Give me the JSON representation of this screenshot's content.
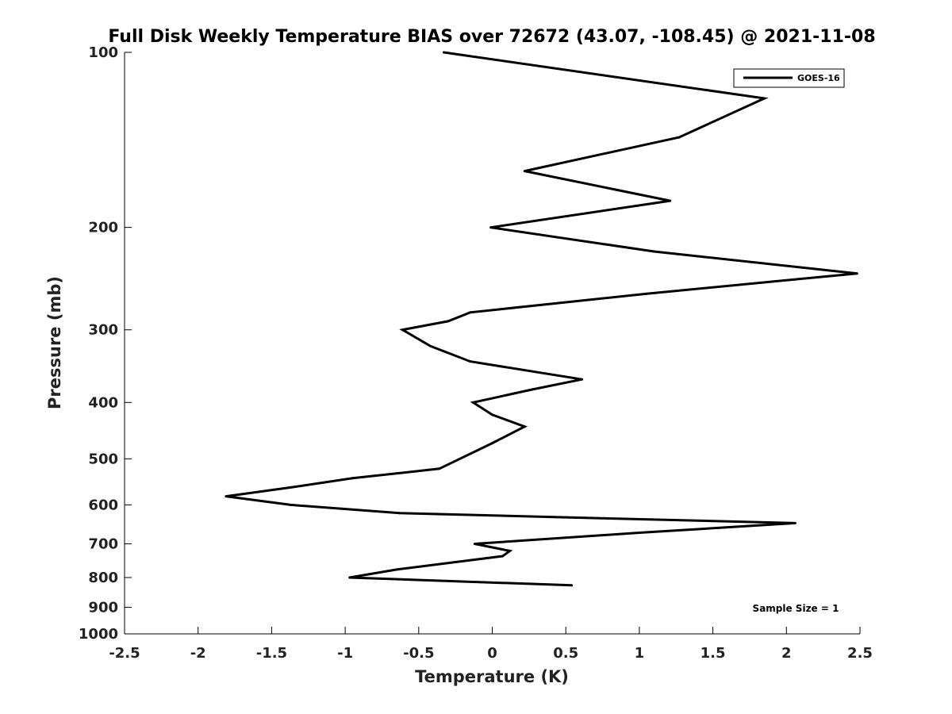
{
  "chart_data": {
    "type": "line",
    "title": "Full Disk Weekly Temperature BIAS over 72672 (43.07, -108.45) @ 2021-11-08",
    "xlabel": "Temperature (K)",
    "ylabel": "Pressure (mb)",
    "xlim": [
      -2.5,
      2.5
    ],
    "ylim": [
      1000,
      100
    ],
    "y_scale": "log",
    "y_reversed": true,
    "grid": false,
    "legend_position": "top-right",
    "x_ticks": [
      "-2.5",
      "-2",
      "-1.5",
      "-1",
      "-0.5",
      "0",
      "0.5",
      "1",
      "1.5",
      "2",
      "2.5"
    ],
    "y_ticks": [
      "100",
      "200",
      "300",
      "400",
      "500",
      "600",
      "700",
      "800",
      "900",
      "1000"
    ],
    "series": [
      {
        "name": "GOES-16",
        "color": "#000000",
        "points": [
          {
            "t": -0.33,
            "p": 100
          },
          {
            "t": 1.85,
            "p": 120
          },
          {
            "t": 1.27,
            "p": 140
          },
          {
            "t": 0.22,
            "p": 160
          },
          {
            "t": 1.21,
            "p": 180
          },
          {
            "t": -0.01,
            "p": 200
          },
          {
            "t": 1.1,
            "p": 220
          },
          {
            "t": 2.48,
            "p": 240
          },
          {
            "t": 1.05,
            "p": 260
          },
          {
            "t": -0.15,
            "p": 280
          },
          {
            "t": -0.3,
            "p": 290
          },
          {
            "t": -0.61,
            "p": 300
          },
          {
            "t": -0.42,
            "p": 320
          },
          {
            "t": -0.15,
            "p": 340
          },
          {
            "t": 0.61,
            "p": 365
          },
          {
            "t": 0.27,
            "p": 380
          },
          {
            "t": -0.13,
            "p": 400
          },
          {
            "t": 0.0,
            "p": 420
          },
          {
            "t": 0.22,
            "p": 440
          },
          {
            "t": 0.0,
            "p": 470
          },
          {
            "t": -0.36,
            "p": 520
          },
          {
            "t": -0.95,
            "p": 540
          },
          {
            "t": -1.37,
            "p": 560
          },
          {
            "t": -1.81,
            "p": 580
          },
          {
            "t": -1.37,
            "p": 600
          },
          {
            "t": -0.63,
            "p": 620
          },
          {
            "t": 2.06,
            "p": 645
          },
          {
            "t": 1.0,
            "p": 670
          },
          {
            "t": -0.12,
            "p": 700
          },
          {
            "t": 0.12,
            "p": 720
          },
          {
            "t": 0.07,
            "p": 735
          },
          {
            "t": -0.65,
            "p": 775
          },
          {
            "t": -0.97,
            "p": 800
          },
          {
            "t": 0.54,
            "p": 825
          }
        ]
      }
    ],
    "annotation": "Sample Size = 1"
  }
}
